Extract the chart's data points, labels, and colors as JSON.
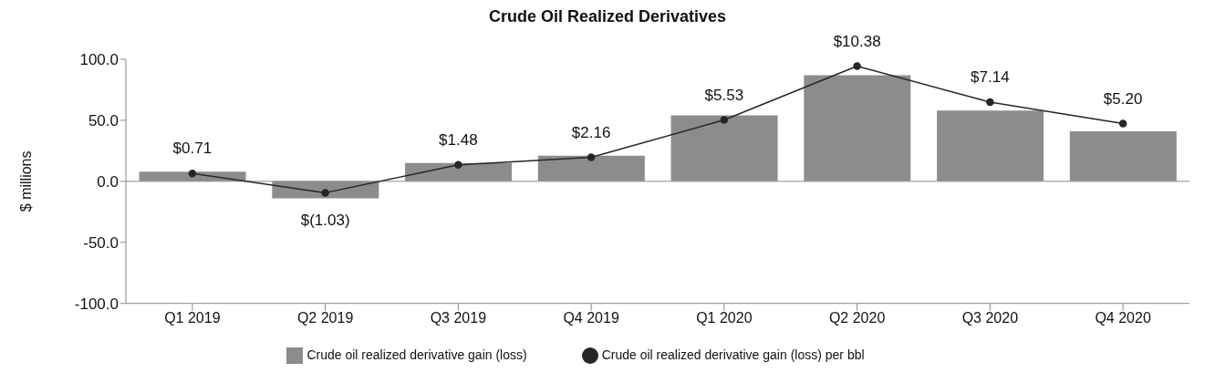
{
  "chart_data": {
    "type": "bar",
    "title": "Crude Oil Realized Derivatives",
    "ylabel": "$ millions",
    "categories": [
      "Q1 2019",
      "Q2 2019",
      "Q3 2019",
      "Q4 2019",
      "Q1 2020",
      "Q2 2020",
      "Q3 2020",
      "Q4 2020"
    ],
    "series": [
      {
        "name": "Crude oil realized derivative gain (loss)",
        "color": "#8c8c8c",
        "values": [
          8,
          -14,
          15,
          21,
          54,
          87,
          58,
          41
        ]
      },
      {
        "name": "Crude oil realized derivative gain (loss) per bbl",
        "type": "line",
        "axis": "y2",
        "color": "#262626",
        "marker": "circle",
        "values": [
          0.71,
          -1.03,
          1.48,
          2.16,
          5.53,
          10.38,
          7.14,
          5.2
        ],
        "value_labels": [
          "$0.71",
          "$(1.03)",
          "$1.48",
          "$2.16",
          "$5.53",
          "$10.38",
          "$7.14",
          "$5.20"
        ]
      }
    ],
    "ylim": [
      -100,
      100
    ],
    "yticks": [
      {
        "value": -100,
        "label": "-100.0"
      },
      {
        "value": -50,
        "label": "-50.0"
      },
      {
        "value": 0,
        "label": "0.0"
      },
      {
        "value": 50,
        "label": "50.0"
      },
      {
        "value": 100,
        "label": "100.0"
      }
    ],
    "y2lim": [
      -11,
      11
    ],
    "grid": false,
    "legend": "bottom",
    "ref_lines": [
      {
        "axis": "y",
        "value": 0,
        "color": "#8c8c8c"
      }
    ]
  }
}
